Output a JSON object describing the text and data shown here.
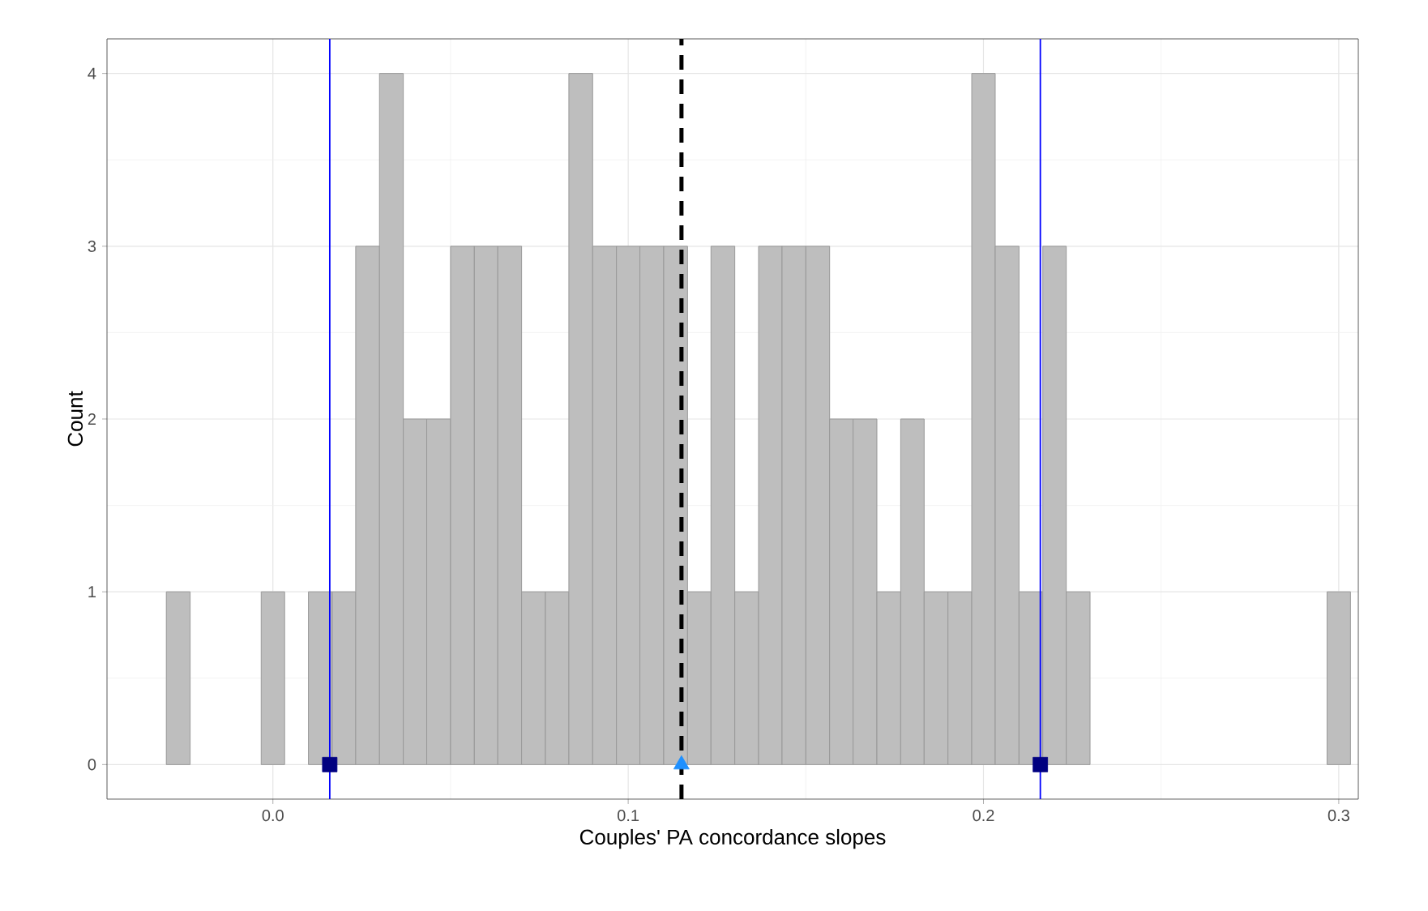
{
  "chart_data": {
    "type": "histogram",
    "xlabel": "Couples' PA concordance slopes",
    "ylabel": "Count",
    "bins": [
      -0.03,
      -0.0233,
      -0.0167,
      -0.01,
      -0.0033,
      0.0033,
      0.01,
      0.0167,
      0.0233,
      0.03,
      0.0367,
      0.0433,
      0.05,
      0.0567,
      0.0633,
      0.07,
      0.0767,
      0.0833,
      0.09,
      0.0967,
      0.1033,
      0.11,
      0.1167,
      0.1233,
      0.13,
      0.1367,
      0.1433,
      0.15,
      0.1567,
      0.1633,
      0.17,
      0.1767,
      0.1833,
      0.19,
      0.1967,
      0.2033,
      0.21,
      0.2167,
      0.2233,
      0.23,
      0.2367,
      0.2433,
      0.25,
      0.2567,
      0.2633,
      0.27,
      0.2767,
      0.2833,
      0.29,
      0.2967,
      0.3033
    ],
    "values": [
      1,
      0,
      0,
      0,
      1,
      0,
      1,
      1,
      3,
      4,
      2,
      2,
      3,
      3,
      3,
      1,
      1,
      4,
      3,
      3,
      3,
      3,
      1,
      3,
      1,
      3,
      3,
      3,
      2,
      2,
      1,
      2,
      1,
      1,
      4,
      3,
      1,
      3,
      1,
      0,
      0,
      0,
      0,
      0,
      0,
      0,
      0,
      0,
      0,
      1
    ],
    "color": "#bebebe",
    "series": [
      {
        "type": "scatter",
        "x": [
          0.016,
          0.216
        ],
        "values": [
          0,
          0
        ],
        "color": "#000080",
        "marker": "square"
      },
      {
        "type": "scatter",
        "x": [
          0.115
        ],
        "values": [
          0
        ],
        "color": "#1e90ff",
        "marker": "triangle"
      }
    ],
    "ref_lines": [
      {
        "axis": "x",
        "value": 0.016,
        "color": "#0000ff",
        "line_style": "solid"
      },
      {
        "axis": "x",
        "value": 0.216,
        "color": "#0000ff",
        "line_style": "solid"
      },
      {
        "axis": "x",
        "value": 0.115,
        "color": "#000000",
        "line_style": "dashed"
      }
    ],
    "xlim": [
      -0.0467,
      0.3055
    ],
    "ylim": [
      -0.2,
      4.2
    ],
    "xticks": [
      {
        "value": 0,
        "label": "0.0"
      },
      0.1,
      0.2,
      0.3
    ],
    "yticks": [
      0,
      1,
      2,
      3,
      4
    ],
    "grid": true
  }
}
